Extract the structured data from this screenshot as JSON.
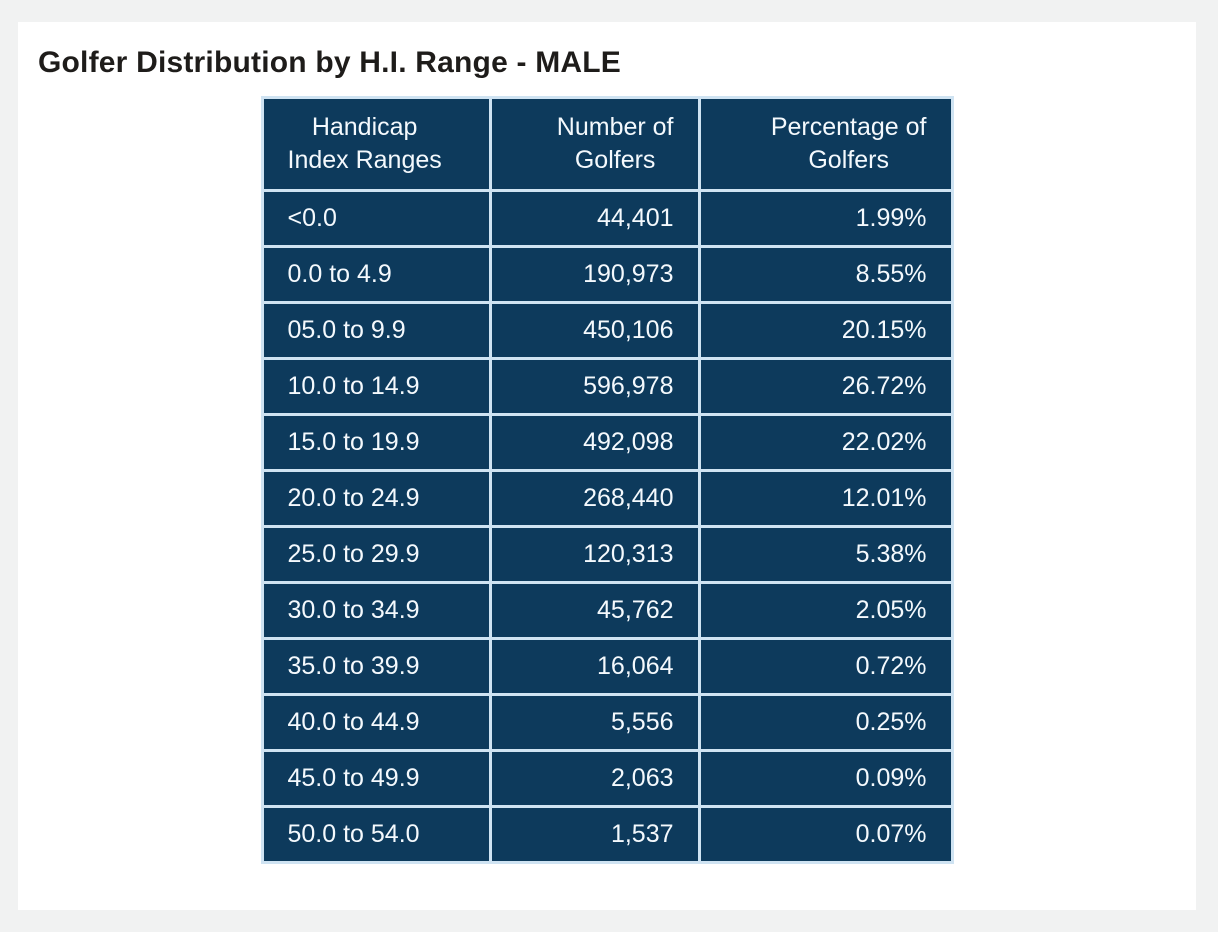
{
  "page": {
    "title": "Golfer Distribution by H.I. Range - MALE"
  },
  "colors": {
    "page_background": "#f1f2f2",
    "card_background": "#ffffff",
    "table_cell_navy": "#0d3a5c",
    "table_gridline_light_blue": "#cfe3f2",
    "table_text": "#f4f9fd",
    "title_text": "#1e1c1a"
  },
  "table": {
    "headers": [
      "Handicap\nIndex Ranges",
      "Number of\nGolfers",
      "Percentage of\nGolfers"
    ],
    "rows": [
      [
        "<0.0",
        "44,401",
        "1.99%"
      ],
      [
        "0.0 to 4.9",
        "190,973",
        "8.55%"
      ],
      [
        "05.0 to 9.9",
        "450,106",
        "20.15%"
      ],
      [
        "10.0 to 14.9",
        "596,978",
        "26.72%"
      ],
      [
        "15.0 to 19.9",
        "492,098",
        "22.02%"
      ],
      [
        "20.0 to 24.9",
        "268,440",
        "12.01%"
      ],
      [
        "25.0 to 29.9",
        "120,313",
        "5.38%"
      ],
      [
        "30.0 to 34.9",
        "45,762",
        "2.05%"
      ],
      [
        "35.0 to 39.9",
        "16,064",
        "0.72%"
      ],
      [
        "40.0 to 44.9",
        "5,556",
        "0.25%"
      ],
      [
        "45.0 to 49.9",
        "2,063",
        "0.09%"
      ],
      [
        "50.0 to 54.0",
        "1,537",
        "0.07%"
      ]
    ]
  },
  "chart_data": {
    "type": "table",
    "title": "Golfer Distribution by H.I. Range - MALE",
    "columns": [
      "Handicap Index Ranges",
      "Number of Golfers",
      "Percentage of Golfers"
    ],
    "categories": [
      "<0.0",
      "0.0 to 4.9",
      "05.0 to 9.9",
      "10.0 to 14.9",
      "15.0 to 19.9",
      "20.0 to 24.9",
      "25.0 to 29.9",
      "30.0 to 34.9",
      "35.0 to 39.9",
      "40.0 to 44.9",
      "45.0 to 49.9",
      "50.0 to 54.0"
    ],
    "series": [
      {
        "name": "Number of Golfers",
        "values": [
          44401,
          190973,
          450106,
          596978,
          492098,
          268440,
          120313,
          45762,
          16064,
          5556,
          2063,
          1537
        ]
      },
      {
        "name": "Percentage of Golfers",
        "values": [
          1.99,
          8.55,
          20.15,
          26.72,
          22.02,
          12.01,
          5.38,
          2.05,
          0.72,
          0.25,
          0.09,
          0.07
        ]
      }
    ]
  }
}
